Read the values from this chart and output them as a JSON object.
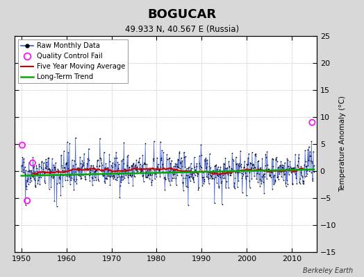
{
  "title": "BOGUCAR",
  "subtitle": "49.933 N, 40.567 E (Russia)",
  "ylabel": "Temperature Anomaly (°C)",
  "attribution": "Berkeley Earth",
  "xlim": [
    1948.5,
    2015.5
  ],
  "ylim": [
    -15,
    25
  ],
  "yticks": [
    -15,
    -10,
    -5,
    0,
    5,
    10,
    15,
    20,
    25
  ],
  "xticks": [
    1950,
    1960,
    1970,
    1980,
    1990,
    2000,
    2010
  ],
  "fig_bg_color": "#d8d8d8",
  "plot_bg_color": "#ffffff",
  "raw_line_color": "#3355cc",
  "raw_dot_color": "#000000",
  "moving_avg_color": "#cc0000",
  "trend_color": "#00aa00",
  "qc_fail_color": "#ff00ff",
  "grid_color": "#c8c8c8",
  "seed": 42,
  "years_start": 1950,
  "years_end": 2014,
  "noise_std": 2.0,
  "trend_slope": 0.025
}
